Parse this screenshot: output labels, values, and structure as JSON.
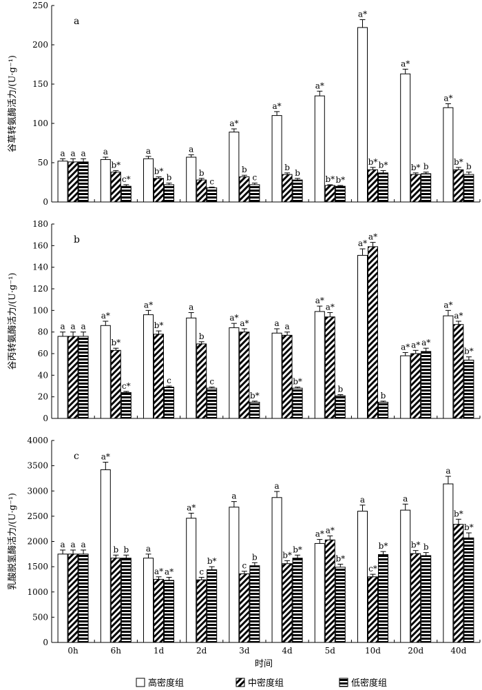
{
  "chart_data": [
    {
      "type": "bar",
      "panel": "a",
      "ylabel": "谷草转氨酶活力/(U·g⁻¹)",
      "ylim": [
        0,
        250
      ],
      "yticks": [
        0,
        50,
        100,
        150,
        200,
        250
      ],
      "categories": [
        "0h",
        "6h",
        "1d",
        "2d",
        "3d",
        "4d",
        "5d",
        "10d",
        "20d",
        "40d"
      ],
      "series": [
        {
          "name": "高密度组",
          "values": [
            52,
            54,
            55,
            57,
            89,
            110,
            135,
            222,
            163,
            120
          ],
          "errors": [
            3,
            3,
            3,
            3,
            4,
            5,
            6,
            10,
            6,
            5
          ],
          "labels": [
            "a",
            "a",
            "a",
            "a",
            "a*",
            "a*",
            "a*",
            "a*",
            "a*",
            "a*"
          ]
        },
        {
          "name": "中密度组",
          "values": [
            51,
            38,
            30,
            28,
            32,
            35,
            21,
            41,
            35,
            41
          ],
          "errors": [
            4,
            2,
            2,
            2,
            2,
            2,
            1,
            3,
            2,
            3
          ],
          "labels": [
            "a",
            "b*",
            "b*",
            "b",
            "b",
            "b",
            "b*",
            "b*",
            "b*",
            "b*"
          ]
        },
        {
          "name": "低密度组",
          "values": [
            51,
            20,
            22,
            18,
            22,
            28,
            20,
            37,
            36,
            35
          ],
          "errors": [
            4,
            2,
            2,
            1,
            2,
            2,
            1,
            3,
            2,
            3
          ],
          "labels": [
            "a",
            "c*",
            "b",
            "c",
            "c",
            "b",
            "b*",
            "b*",
            "b",
            "b"
          ]
        }
      ]
    },
    {
      "type": "bar",
      "panel": "b",
      "ylabel": "谷丙转氨酶活力/(U·g⁻¹)",
      "ylim": [
        0,
        180
      ],
      "yticks": [
        0,
        20,
        40,
        60,
        80,
        100,
        120,
        140,
        160,
        180
      ],
      "categories": [
        "0h",
        "6h",
        "1d",
        "2d",
        "3d",
        "4d",
        "5d",
        "10d",
        "20d",
        "40d"
      ],
      "series": [
        {
          "name": "高密度组",
          "values": [
            76,
            86,
            96,
            93,
            84,
            79,
            99,
            151,
            58,
            95
          ],
          "errors": [
            4,
            4,
            4,
            5,
            4,
            4,
            5,
            6,
            3,
            5
          ],
          "labels": [
            "a",
            "a*",
            "a*",
            "a",
            "a*",
            "a",
            "a*",
            "a*",
            "a*",
            "a*"
          ]
        },
        {
          "name": "中密度组",
          "values": [
            76,
            63,
            78,
            69,
            80,
            77,
            94,
            159,
            60,
            87
          ],
          "errors": [
            4,
            2,
            3,
            2,
            3,
            3,
            4,
            4,
            3,
            3
          ],
          "labels": [
            "a",
            "b*",
            "b*",
            "b",
            "a*",
            "a",
            "a*",
            "a*",
            "a*",
            "a*"
          ]
        },
        {
          "name": "低密度组",
          "values": [
            76,
            24,
            29,
            28,
            15,
            28,
            21,
            15,
            62,
            54
          ],
          "errors": [
            4,
            1,
            1,
            1,
            1,
            1,
            1,
            1,
            3,
            3
          ],
          "labels": [
            "a",
            "c*",
            "c",
            "c",
            "b*",
            "b*",
            "b",
            "b",
            "a*",
            "b*"
          ]
        }
      ]
    },
    {
      "type": "bar",
      "panel": "c",
      "ylabel": "乳酸脱氢酶活力/(U·g⁻¹)",
      "ylim": [
        0,
        4000
      ],
      "yticks": [
        0,
        500,
        1000,
        1500,
        2000,
        2500,
        3000,
        3500,
        4000
      ],
      "categories": [
        "0h",
        "6h",
        "1d",
        "2d",
        "3d",
        "4d",
        "5d",
        "10d",
        "20d",
        "40d"
      ],
      "series": [
        {
          "name": "高密度组",
          "values": [
            1750,
            3420,
            1670,
            2460,
            2680,
            2870,
            1960,
            2600,
            2620,
            3140
          ],
          "errors": [
            80,
            150,
            80,
            100,
            110,
            120,
            80,
            120,
            120,
            150
          ],
          "labels": [
            "a",
            "a*",
            "a",
            "a*",
            "a",
            "a",
            "a*",
            "a",
            "a",
            "a"
          ]
        },
        {
          "name": "中密度组",
          "values": [
            1750,
            1670,
            1250,
            1240,
            1360,
            1560,
            2030,
            1300,
            1760,
            2340
          ],
          "errors": [
            80,
            60,
            50,
            50,
            50,
            60,
            80,
            50,
            60,
            100
          ],
          "labels": [
            "a",
            "b",
            "a*",
            "c",
            "c",
            "b*",
            "a*",
            "c*",
            "b*",
            "b*"
          ]
        },
        {
          "name": "低密度组",
          "values": [
            1750,
            1670,
            1230,
            1440,
            1520,
            1670,
            1490,
            1740,
            1720,
            2070
          ],
          "errors": [
            80,
            60,
            60,
            60,
            60,
            60,
            60,
            60,
            60,
            100
          ],
          "labels": [
            "a",
            "b",
            "a*",
            "b*",
            "b",
            "b*",
            "b*",
            "b*",
            "b",
            "b*"
          ]
        }
      ]
    }
  ],
  "xlabel": "时间",
  "legend": [
    "高密度组",
    "中密度组",
    "低密度组"
  ]
}
